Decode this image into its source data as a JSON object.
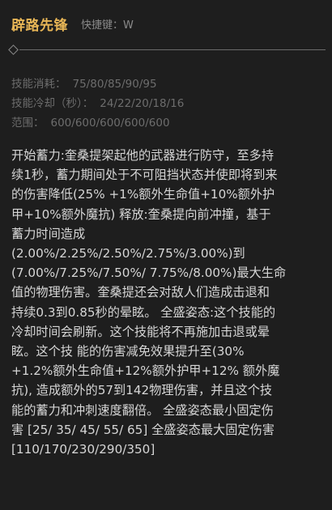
{
  "skill": {
    "name": "辟路先锋",
    "hotkey_label": "快捷键：W"
  },
  "stats": [
    {
      "label": "技能消耗：",
      "value": "75/80/85/90/95"
    },
    {
      "label": "技能冷却（秒）：",
      "value": "24/22/20/18/16"
    },
    {
      "label": "范围：",
      "value": "600/600/600/600/600"
    }
  ],
  "description_lines": [
    "开始蓄力:奎桑提架起他的武器进行防守，至多持",
    "续1秒，蓄力期间处于不可阻挡状态并使即将到来",
    "的伤害降低(25% +1%额外生命值+10%额外护",
    "甲+10%额外魔抗) 释放:奎桑提向前冲撞，基于",
    "蓄力时间造成",
    "(2.00%/2.25%/2.50%/2.75%/3.00%)到",
    "(7.00%/7.25%/7.50%/ 7.75%/8.00%)最大生命",
    "值的物理伤害。奎桑提还会对敌人们造成击退和",
    "持续0.3到0.85秒的晕眩。 全盛姿态:这个技能的",
    "冷却时间会刷新。这个技能将不再施加击退或晕",
    "眩。这个技 能的伤害减免效果提升至(30%",
    "+1.2%额外生命值+12%额外护甲+12% 额外魔",
    "抗), 造成额外的57到142物理伤害，并且这个技",
    "能的蓄力和冲刺速度翻倍。 全盛姿态最小固定伤",
    "害 [25/ 35/ 45/ 55/ 65]   全盛姿态最大固定伤害",
    "[110/170/230/290/350]"
  ]
}
